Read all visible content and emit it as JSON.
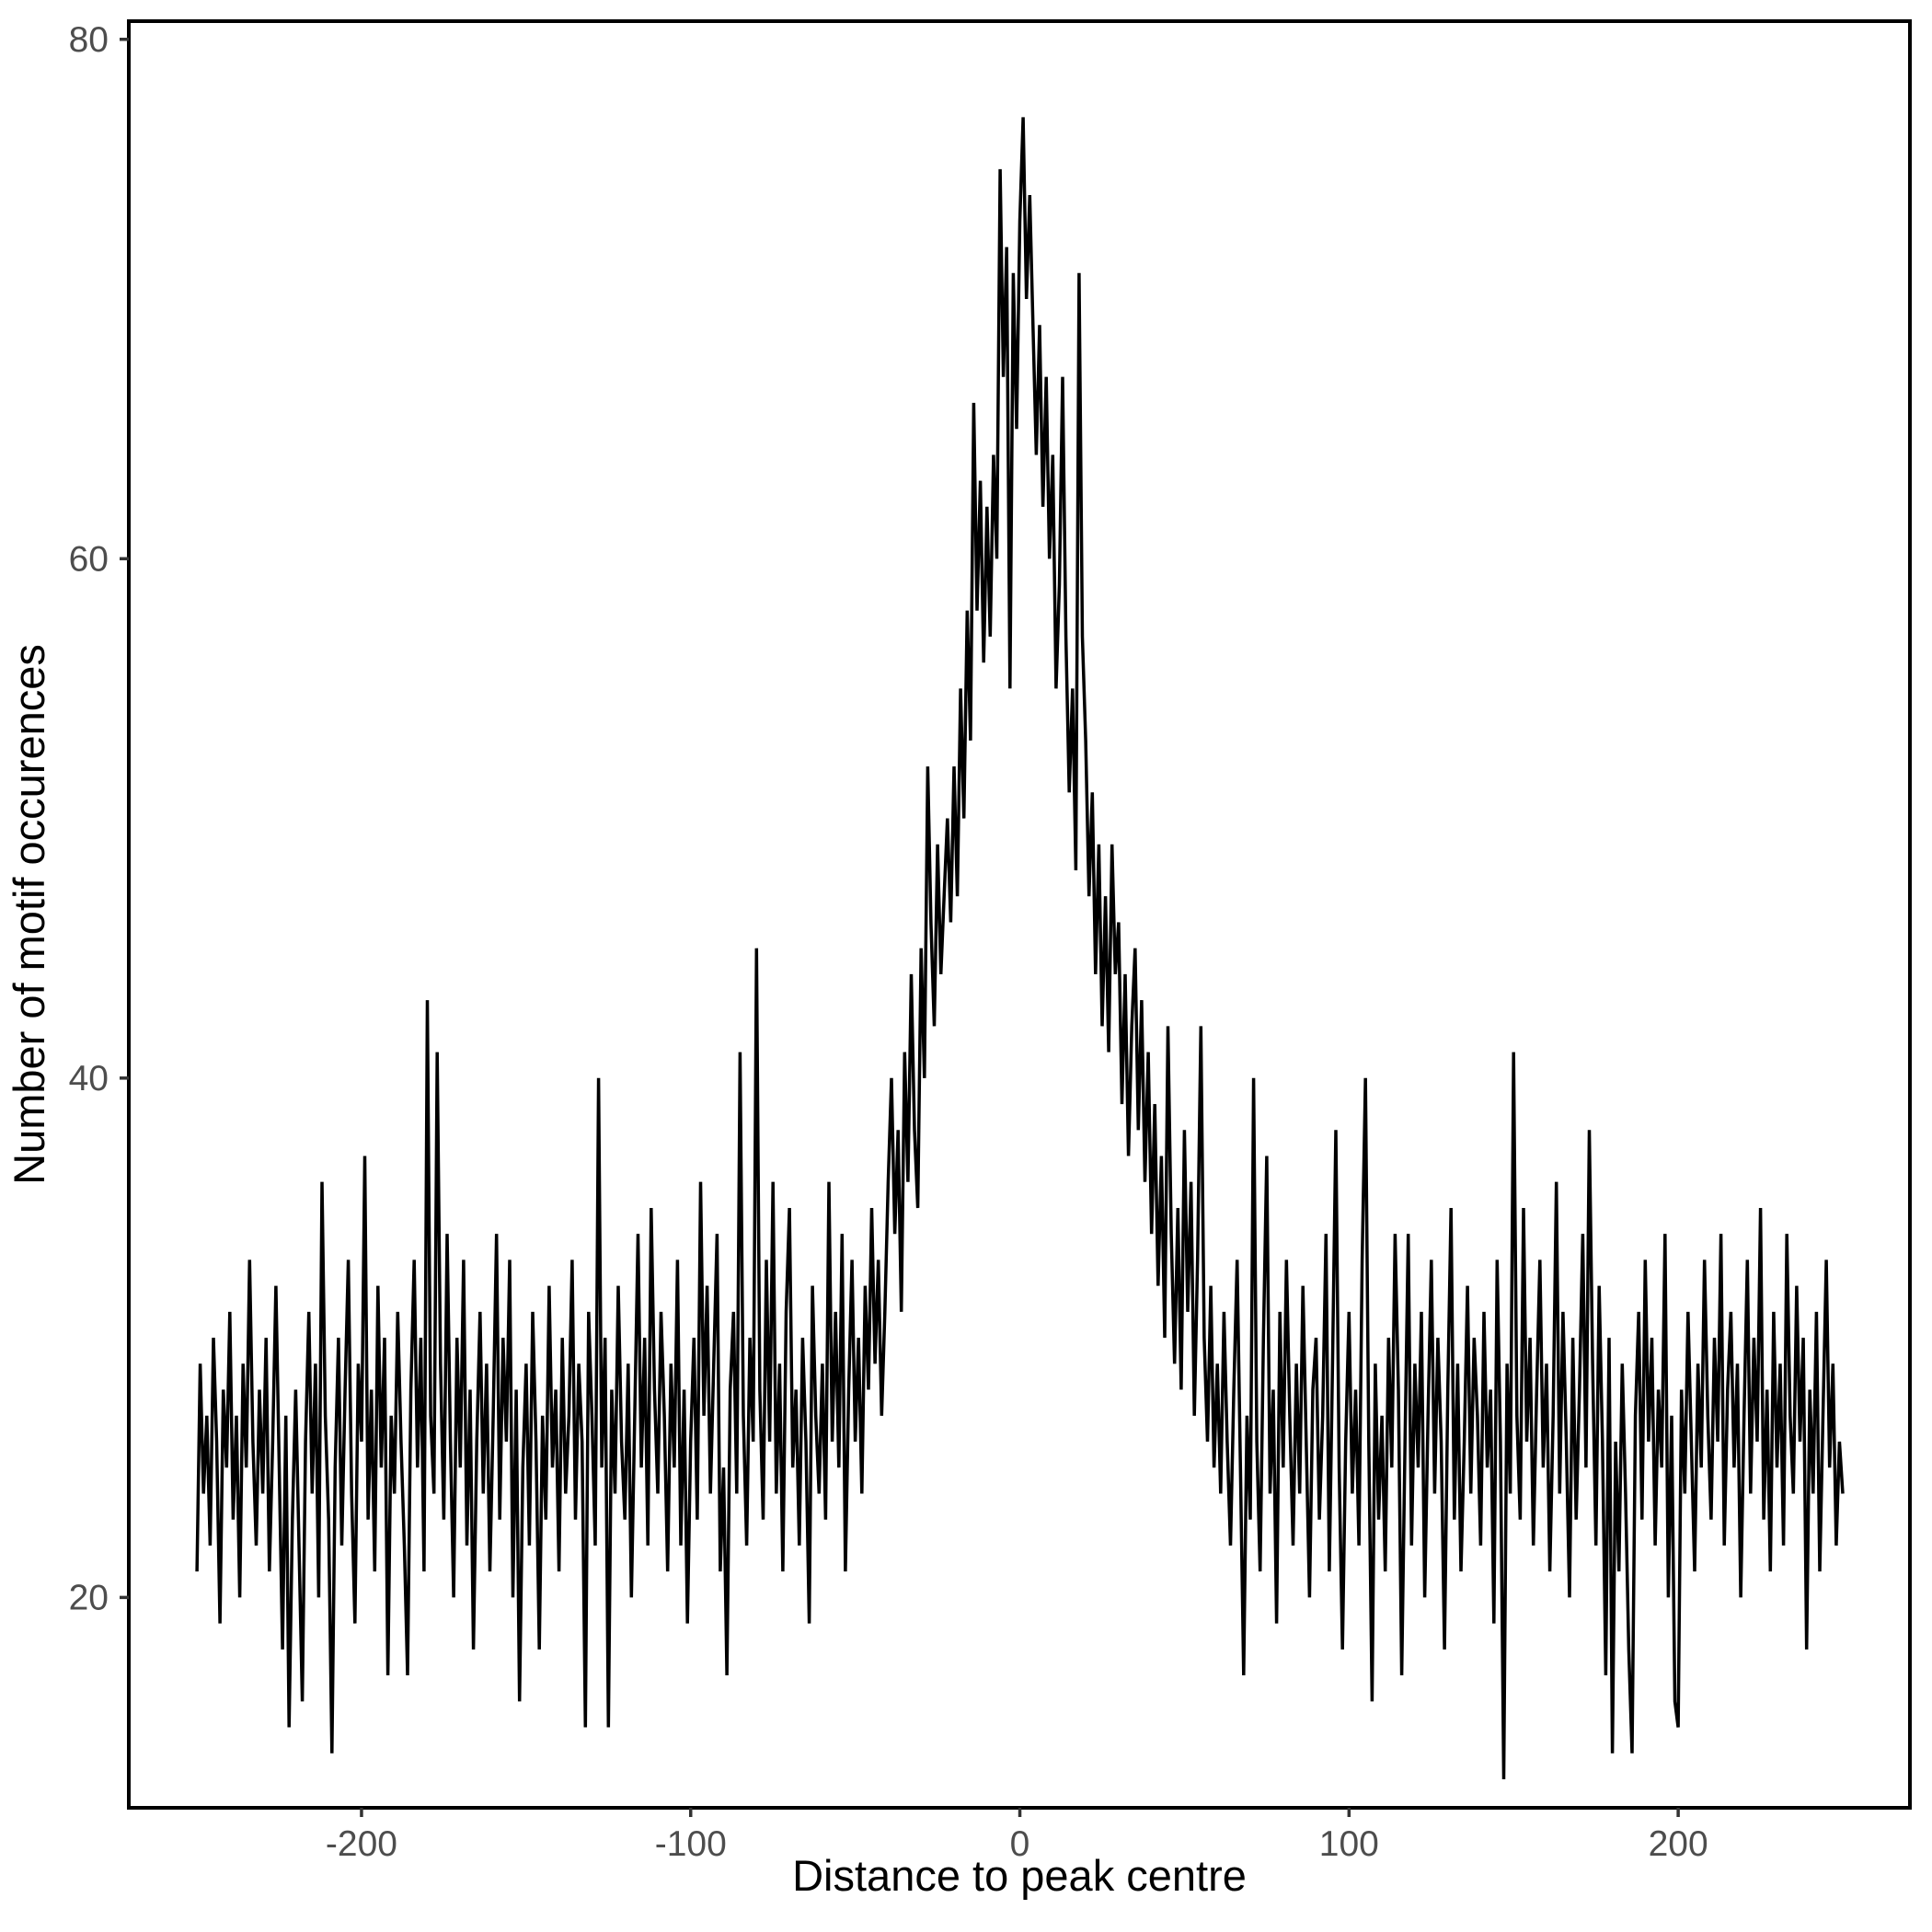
{
  "figure": {
    "background": "#ffffff",
    "panel_border_color": "#000000",
    "tick_color": "#333333",
    "tick_label_color": "#4d4d4d",
    "axis_title_color": "#000000"
  },
  "chart_data": {
    "type": "line",
    "title": "",
    "xlabel": "Distance to peak centre",
    "ylabel": "Number of motif occurences",
    "legend": "none",
    "grid": "off",
    "line_color": "#000000",
    "line_width": 3.5,
    "x_start": -250,
    "x_step": 1,
    "x_ticks": [
      -200,
      -100,
      0,
      100,
      200
    ],
    "x_tick_labels": [
      "-200",
      "-100",
      "0",
      "100",
      "200"
    ],
    "y_ticks": [
      20,
      40,
      60,
      80
    ],
    "y_tick_labels": [
      "20",
      "40",
      "60",
      "80"
    ],
    "xlim": [
      -270.7,
      270.4
    ],
    "ylim": [
      11.9,
      80.7
    ],
    "values": [
      21,
      29,
      24,
      27,
      22,
      30,
      26,
      19,
      28,
      25,
      31,
      23,
      27,
      20,
      29,
      25,
      33,
      26,
      22,
      28,
      24,
      30,
      21,
      26,
      32,
      25,
      18,
      27,
      15,
      23,
      28,
      22,
      16,
      26,
      31,
      24,
      29,
      20,
      36,
      27,
      23,
      14,
      25,
      30,
      22,
      28,
      33,
      24,
      19,
      29,
      26,
      37,
      23,
      28,
      21,
      32,
      25,
      30,
      17,
      27,
      24,
      31,
      26,
      22,
      17,
      28,
      33,
      25,
      30,
      21,
      43,
      27,
      24,
      41,
      29,
      23,
      34,
      26,
      20,
      30,
      25,
      33,
      22,
      28,
      18,
      26,
      31,
      24,
      29,
      21,
      27,
      34,
      23,
      30,
      26,
      33,
      20,
      28,
      16,
      25,
      29,
      22,
      31,
      26,
      18,
      27,
      23,
      32,
      25,
      28,
      21,
      30,
      24,
      27,
      33,
      23,
      29,
      26,
      15,
      31,
      27,
      22,
      40,
      25,
      30,
      15,
      28,
      24,
      32,
      26,
      23,
      29,
      20,
      27,
      34,
      25,
      30,
      22,
      35,
      28,
      24,
      31,
      27,
      21,
      29,
      25,
      33,
      22,
      28,
      19,
      26,
      30,
      23,
      36,
      27,
      32,
      24,
      29,
      34,
      21,
      25,
      17,
      28,
      31,
      24,
      41,
      27,
      22,
      30,
      26,
      45,
      28,
      23,
      33,
      26,
      36,
      24,
      29,
      21,
      31,
      35,
      25,
      28,
      22,
      30,
      26,
      19,
      32,
      27,
      24,
      29,
      23,
      36,
      26,
      31,
      25,
      34,
      21,
      28,
      33,
      26,
      30,
      24,
      32,
      28,
      35,
      29,
      33,
      27,
      31,
      36,
      40,
      34,
      38,
      31,
      41,
      36,
      44,
      38,
      35,
      45,
      40,
      52,
      46,
      42,
      49,
      44,
      47,
      50,
      46,
      52,
      47,
      55,
      50,
      58,
      53,
      66,
      58,
      63,
      56,
      62,
      57,
      64,
      60,
      75,
      67,
      72,
      55,
      71,
      65,
      73,
      77,
      70,
      74,
      69,
      64,
      69,
      62,
      67,
      60,
      64,
      55,
      59,
      67,
      57,
      51,
      55,
      48,
      71,
      57,
      53,
      47,
      51,
      44,
      49,
      42,
      47,
      41,
      49,
      44,
      46,
      39,
      44,
      37,
      42,
      45,
      38,
      43,
      36,
      41,
      34,
      39,
      32,
      37,
      30,
      42,
      34,
      29,
      35,
      28,
      38,
      31,
      36,
      27,
      33,
      42,
      30,
      26,
      32,
      25,
      29,
      24,
      31,
      26,
      22,
      28,
      33,
      25,
      17,
      27,
      23,
      40,
      26,
      21,
      30,
      37,
      24,
      28,
      19,
      31,
      25,
      33,
      27,
      22,
      29,
      24,
      32,
      26,
      20,
      28,
      30,
      23,
      27,
      34,
      21,
      29,
      38,
      25,
      18,
      26,
      31,
      24,
      28,
      22,
      33,
      40,
      26,
      16,
      29,
      23,
      27,
      21,
      30,
      25,
      34,
      28,
      17,
      26,
      34,
      22,
      29,
      25,
      31,
      20,
      27,
      33,
      24,
      30,
      26,
      18,
      28,
      35,
      23,
      29,
      21,
      26,
      32,
      24,
      30,
      27,
      22,
      31,
      25,
      28,
      19,
      33,
      26,
      13,
      29,
      24,
      41,
      27,
      23,
      35,
      26,
      30,
      22,
      28,
      33,
      25,
      29,
      21,
      27,
      36,
      24,
      31,
      26,
      20,
      30,
      23,
      28,
      34,
      25,
      38,
      29,
      22,
      32,
      26,
      17,
      30,
      14,
      26,
      21,
      29,
      24,
      18,
      14,
      27,
      31,
      23,
      33,
      26,
      30,
      22,
      28,
      25,
      34,
      20,
      27,
      16,
      15,
      28,
      24,
      31,
      26,
      21,
      29,
      25,
      33,
      27,
      23,
      30,
      26,
      34,
      22,
      28,
      31,
      25,
      29,
      20,
      27,
      33,
      24,
      30,
      26,
      35,
      23,
      28,
      21,
      31,
      25,
      29,
      22,
      34,
      27,
      24,
      32,
      26,
      30,
      18,
      28,
      24,
      31,
      21,
      27,
      33,
      25,
      29,
      22,
      26,
      24
    ]
  }
}
